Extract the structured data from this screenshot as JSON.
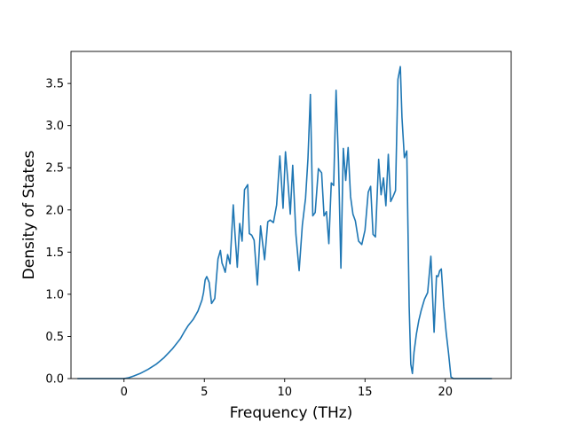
{
  "chart_data": {
    "type": "line",
    "title": "",
    "xlabel": "Frequency (THz)",
    "ylabel": "Density of States",
    "xlim": [
      -3.3,
      24.1
    ],
    "ylim": [
      0,
      3.88
    ],
    "xticks": [
      0,
      5,
      10,
      15,
      20
    ],
    "yticks": [
      0.0,
      0.5,
      1.0,
      1.5,
      2.0,
      2.5,
      3.0,
      3.5
    ],
    "ytick_labels": [
      "0.0",
      "0.5",
      "1.0",
      "1.5",
      "2.0",
      "2.5",
      "3.0",
      "3.5"
    ],
    "grid": false,
    "legend": "none",
    "series": [
      {
        "color": "#1f77b4",
        "x": [
          -2.9,
          0.0,
          0.3,
          0.6,
          1.0,
          1.5,
          2.0,
          2.5,
          3.0,
          3.5,
          3.8,
          4.0,
          4.3,
          4.6,
          4.85,
          4.95,
          5.05,
          5.15,
          5.3,
          5.45,
          5.65,
          5.85,
          6.0,
          6.1,
          6.2,
          6.3,
          6.45,
          6.6,
          6.8,
          6.9,
          7.05,
          7.2,
          7.35,
          7.5,
          7.7,
          7.8,
          7.95,
          8.1,
          8.3,
          8.5,
          8.75,
          8.95,
          9.1,
          9.3,
          9.5,
          9.7,
          9.9,
          10.05,
          10.2,
          10.35,
          10.5,
          10.7,
          10.9,
          11.1,
          11.3,
          11.45,
          11.6,
          11.75,
          11.9,
          12.1,
          12.3,
          12.45,
          12.6,
          12.75,
          12.9,
          13.05,
          13.2,
          13.35,
          13.5,
          13.65,
          13.8,
          13.95,
          14.1,
          14.25,
          14.4,
          14.6,
          14.8,
          15.0,
          15.2,
          15.35,
          15.5,
          15.65,
          15.85,
          16.0,
          16.15,
          16.3,
          16.45,
          16.6,
          16.75,
          16.9,
          17.05,
          17.2,
          17.3,
          17.45,
          17.6,
          17.75,
          17.85,
          17.95,
          18.05,
          18.2,
          18.35,
          18.5,
          18.7,
          18.9,
          19.1,
          19.3,
          19.45,
          19.55,
          19.65,
          19.75,
          19.9,
          20.05,
          20.2,
          20.35,
          20.5,
          20.6,
          20.75,
          20.85,
          20.95,
          22.9
        ],
        "y": [
          0.0,
          0.0,
          0.01,
          0.03,
          0.06,
          0.11,
          0.17,
          0.25,
          0.35,
          0.47,
          0.57,
          0.63,
          0.7,
          0.8,
          0.93,
          1.02,
          1.17,
          1.21,
          1.14,
          0.89,
          0.95,
          1.42,
          1.52,
          1.37,
          1.32,
          1.26,
          1.47,
          1.36,
          2.06,
          1.74,
          1.32,
          1.84,
          1.63,
          2.24,
          2.3,
          1.72,
          1.7,
          1.64,
          1.11,
          1.81,
          1.41,
          1.86,
          1.88,
          1.85,
          2.06,
          2.64,
          2.02,
          2.69,
          2.34,
          1.95,
          2.53,
          1.71,
          1.28,
          1.82,
          2.14,
          2.61,
          3.37,
          1.93,
          1.97,
          2.49,
          2.44,
          1.93,
          1.98,
          1.6,
          2.32,
          2.29,
          3.42,
          2.57,
          1.31,
          2.73,
          2.35,
          2.74,
          2.16,
          1.95,
          1.87,
          1.63,
          1.59,
          1.76,
          2.21,
          2.28,
          1.71,
          1.68,
          2.6,
          2.18,
          2.38,
          2.05,
          2.66,
          2.1,
          2.16,
          2.23,
          3.55,
          3.7,
          3.1,
          2.62,
          2.7,
          0.85,
          0.17,
          0.06,
          0.31,
          0.53,
          0.69,
          0.81,
          0.94,
          1.02,
          1.45,
          0.55,
          1.22,
          1.21,
          1.28,
          1.3,
          0.86,
          0.55,
          0.3,
          0.02,
          0.0,
          0.0,
          0.0,
          0.0,
          0.0,
          0.0
        ]
      }
    ]
  }
}
